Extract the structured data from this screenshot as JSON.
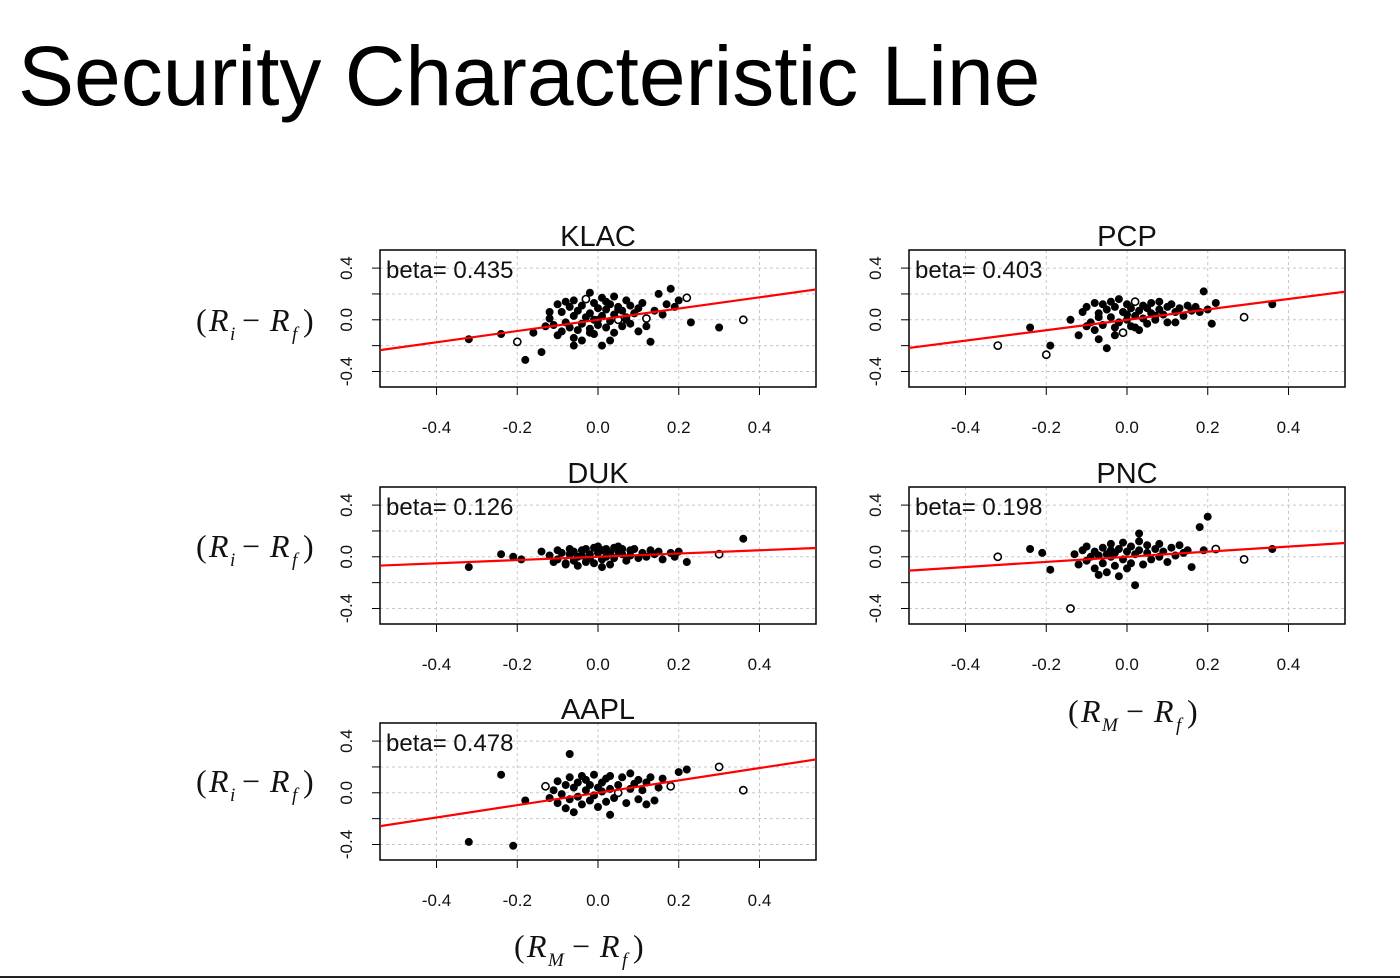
{
  "slide": {
    "title": "Security Characteristic Line"
  },
  "labels": {
    "y_paren_open": "(",
    "y_var": "R",
    "y_sub": "i",
    "y_minus": "−",
    "y_var2": "R",
    "y_sub2": "f",
    "y_paren_close": ")",
    "x_paren_open": "(",
    "x_var": "R",
    "x_sub": "M",
    "x_minus": "−",
    "x_var2": "R",
    "x_sub2": "f",
    "x_paren_close": ")"
  },
  "colors": {
    "regression_line": "#ff0000",
    "points": "#000000",
    "grid": "#c8c8c8",
    "frame": "#000000"
  },
  "chart_data": [
    {
      "type": "scatter",
      "title": "KLAC",
      "annotation": "beta= 0.435",
      "beta": 0.435,
      "intercept": 0.0,
      "xlim": [
        -0.54,
        0.54
      ],
      "ylim": [
        -0.52,
        0.54
      ],
      "xticks": [
        -0.4,
        -0.2,
        0.0,
        0.2,
        0.4
      ],
      "xtick_labels": [
        "-0.4",
        "-0.2",
        "0.0",
        "0.2",
        "0.4"
      ],
      "yticks": [
        -0.4,
        0.0,
        0.4
      ],
      "ytick_labels": [
        "-0.4",
        "0.0",
        "0.4"
      ],
      "grid": true,
      "x": [
        -0.32,
        -0.24,
        -0.2,
        -0.18,
        -0.16,
        -0.14,
        -0.13,
        -0.12,
        -0.11,
        -0.1,
        -0.1,
        -0.09,
        -0.09,
        -0.08,
        -0.08,
        -0.07,
        -0.07,
        -0.06,
        -0.06,
        -0.06,
        -0.05,
        -0.05,
        -0.04,
        -0.04,
        -0.04,
        -0.03,
        -0.03,
        -0.02,
        -0.02,
        -0.02,
        -0.01,
        -0.01,
        -0.01,
        0.0,
        0.0,
        0.01,
        0.01,
        0.01,
        0.02,
        0.02,
        0.02,
        0.03,
        0.03,
        0.04,
        0.04,
        0.04,
        0.05,
        0.05,
        0.06,
        0.06,
        0.07,
        0.07,
        0.08,
        0.08,
        0.09,
        0.1,
        0.1,
        0.11,
        0.12,
        0.13,
        0.14,
        0.15,
        0.16,
        0.17,
        0.18,
        0.19,
        0.2,
        0.22,
        0.23,
        0.3,
        0.36,
        -0.06,
        0.03,
        0.07,
        -0.12,
        0.12,
        -0.02,
        0.05,
        0.0,
        0.09
      ],
      "y": [
        -0.15,
        -0.11,
        -0.17,
        -0.31,
        -0.1,
        -0.25,
        -0.05,
        0.01,
        -0.04,
        -0.12,
        0.12,
        -0.09,
        0.06,
        -0.02,
        0.14,
        -0.06,
        0.1,
        -0.14,
        0.03,
        0.15,
        -0.08,
        0.07,
        -0.03,
        0.11,
        -0.16,
        0.02,
        0.16,
        -0.07,
        0.05,
        0.21,
        -0.11,
        0.0,
        0.13,
        -0.04,
        0.09,
        -0.2,
        0.03,
        0.17,
        -0.06,
        0.08,
        0.14,
        -0.01,
        0.12,
        -0.1,
        0.04,
        0.18,
        0.0,
        0.1,
        -0.05,
        0.07,
        0.02,
        0.15,
        -0.03,
        0.11,
        0.05,
        -0.09,
        0.09,
        0.13,
        0.01,
        -0.17,
        0.07,
        0.2,
        0.04,
        0.12,
        0.24,
        0.1,
        0.15,
        0.17,
        -0.02,
        -0.06,
        0.0,
        -0.2,
        -0.16,
        0.0,
        0.06,
        -0.05,
        -0.1,
        0.08,
        0.0,
        0.05
      ],
      "open_markers": [
        2,
        26,
        46,
        58,
        67,
        70
      ]
    },
    {
      "type": "scatter",
      "title": "PCP",
      "annotation": "beta= 0.403",
      "beta": 0.403,
      "intercept": 0.0,
      "xlim": [
        -0.54,
        0.54
      ],
      "ylim": [
        -0.52,
        0.54
      ],
      "xticks": [
        -0.4,
        -0.2,
        0.0,
        0.2,
        0.4
      ],
      "xtick_labels": [
        "-0.4",
        "-0.2",
        "0.0",
        "0.2",
        "0.4"
      ],
      "yticks": [
        -0.4,
        0.0,
        0.4
      ],
      "ytick_labels": [
        "-0.4",
        "0.0",
        "0.4"
      ],
      "grid": true,
      "x": [
        -0.32,
        -0.24,
        -0.2,
        -0.19,
        -0.14,
        -0.12,
        -0.11,
        -0.1,
        -0.1,
        -0.09,
        -0.08,
        -0.08,
        -0.07,
        -0.07,
        -0.06,
        -0.06,
        -0.05,
        -0.05,
        -0.04,
        -0.04,
        -0.03,
        -0.03,
        -0.02,
        -0.02,
        -0.01,
        -0.01,
        0.0,
        0.0,
        0.01,
        0.01,
        0.02,
        0.02,
        0.03,
        0.03,
        0.04,
        0.04,
        0.05,
        0.05,
        0.06,
        0.06,
        0.07,
        0.08,
        0.08,
        0.09,
        0.1,
        0.1,
        0.11,
        0.12,
        0.13,
        0.14,
        0.15,
        0.16,
        0.17,
        0.18,
        0.19,
        0.2,
        0.21,
        0.22,
        0.29,
        0.36,
        -0.03,
        0.02,
        0.07,
        -0.07,
        0.12,
        0.0
      ],
      "y": [
        -0.2,
        -0.06,
        -0.27,
        -0.2,
        0.0,
        -0.12,
        0.06,
        -0.05,
        0.1,
        -0.02,
        0.13,
        -0.08,
        0.05,
        -0.15,
        0.12,
        -0.04,
        0.08,
        -0.22,
        0.02,
        0.14,
        -0.06,
        0.1,
        -0.02,
        0.16,
        -0.1,
        0.06,
        0.0,
        0.12,
        -0.05,
        0.09,
        0.03,
        0.14,
        -0.08,
        0.07,
        0.01,
        0.11,
        -0.03,
        0.09,
        0.05,
        0.13,
        0.0,
        0.08,
        0.14,
        0.04,
        0.1,
        -0.02,
        0.12,
        0.06,
        0.09,
        0.03,
        0.11,
        0.07,
        0.1,
        0.06,
        0.22,
        0.08,
        -0.03,
        0.13,
        0.02,
        0.12,
        -0.12,
        -0.06,
        0.03,
        0.02,
        -0.02,
        0.04
      ],
      "open_markers": [
        0,
        2,
        24,
        31,
        58
      ]
    },
    {
      "type": "scatter",
      "title": "DUK",
      "annotation": "beta= 0.126",
      "beta": 0.126,
      "intercept": 0.0,
      "xlim": [
        -0.54,
        0.54
      ],
      "ylim": [
        -0.52,
        0.54
      ],
      "xticks": [
        -0.4,
        -0.2,
        0.0,
        0.2,
        0.4
      ],
      "xtick_labels": [
        "-0.4",
        "-0.2",
        "0.0",
        "0.2",
        "0.4"
      ],
      "yticks": [
        -0.4,
        0.0,
        0.4
      ],
      "ytick_labels": [
        "-0.4",
        "0.0",
        "0.4"
      ],
      "grid": true,
      "x": [
        -0.32,
        -0.24,
        -0.21,
        -0.19,
        -0.14,
        -0.12,
        -0.11,
        -0.1,
        -0.1,
        -0.09,
        -0.08,
        -0.07,
        -0.07,
        -0.06,
        -0.06,
        -0.05,
        -0.05,
        -0.04,
        -0.04,
        -0.03,
        -0.03,
        -0.02,
        -0.02,
        -0.01,
        -0.01,
        0.0,
        0.0,
        0.01,
        0.01,
        0.02,
        0.02,
        0.03,
        0.03,
        0.04,
        0.04,
        0.05,
        0.05,
        0.06,
        0.07,
        0.08,
        0.08,
        0.09,
        0.1,
        0.11,
        0.12,
        0.13,
        0.14,
        0.15,
        0.16,
        0.18,
        0.19,
        0.2,
        0.22,
        0.3,
        0.36,
        -0.08,
        0.01,
        0.06
      ],
      "y": [
        -0.08,
        0.02,
        0.0,
        -0.02,
        0.04,
        0.01,
        -0.04,
        0.05,
        -0.02,
        0.03,
        -0.06,
        0.02,
        0.06,
        -0.03,
        0.04,
        0.0,
        -0.07,
        0.05,
        0.01,
        -0.04,
        0.06,
        0.02,
        -0.01,
        0.07,
        -0.05,
        0.03,
        0.08,
        -0.02,
        0.05,
        0.0,
        0.06,
        -0.06,
        0.03,
        0.07,
        -0.01,
        0.04,
        0.08,
        0.02,
        -0.03,
        0.05,
        0.01,
        0.06,
        -0.01,
        0.03,
        0.0,
        0.05,
        0.02,
        0.04,
        -0.02,
        0.03,
        0.0,
        0.04,
        -0.04,
        0.02,
        0.14,
        -0.05,
        -0.08,
        0.06
      ],
      "open_markers": [
        53
      ]
    },
    {
      "type": "scatter",
      "title": "PNC",
      "annotation": "beta= 0.198",
      "beta": 0.198,
      "intercept": 0.0,
      "xlim": [
        -0.54,
        0.54
      ],
      "ylim": [
        -0.52,
        0.54
      ],
      "xticks": [
        -0.4,
        -0.2,
        0.0,
        0.2,
        0.4
      ],
      "xtick_labels": [
        "-0.4",
        "-0.2",
        "0.0",
        "0.2",
        "0.4"
      ],
      "yticks": [
        -0.4,
        0.0,
        0.4
      ],
      "ytick_labels": [
        "-0.4",
        "0.0",
        "0.4"
      ],
      "grid": true,
      "x": [
        -0.32,
        -0.24,
        -0.21,
        -0.19,
        -0.14,
        -0.13,
        -0.12,
        -0.11,
        -0.1,
        -0.1,
        -0.09,
        -0.08,
        -0.08,
        -0.07,
        -0.07,
        -0.06,
        -0.06,
        -0.05,
        -0.05,
        -0.04,
        -0.04,
        -0.03,
        -0.03,
        -0.02,
        -0.02,
        -0.01,
        -0.01,
        0.0,
        0.0,
        0.01,
        0.01,
        0.02,
        0.02,
        0.03,
        0.03,
        0.04,
        0.05,
        0.05,
        0.06,
        0.07,
        0.08,
        0.08,
        0.09,
        0.1,
        0.11,
        0.12,
        0.13,
        0.14,
        0.15,
        0.16,
        0.18,
        0.19,
        0.2,
        0.22,
        0.29,
        0.36,
        -0.04,
        0.03
      ],
      "y": [
        0.0,
        0.06,
        0.03,
        -0.1,
        -0.4,
        0.02,
        -0.06,
        0.05,
        -0.03,
        0.08,
        0.0,
        -0.09,
        0.04,
        0.01,
        -0.14,
        0.07,
        -0.05,
        0.02,
        -0.12,
        0.05,
        0.1,
        -0.07,
        0.03,
        -0.15,
        0.06,
        -0.02,
        0.11,
        -0.09,
        0.04,
        -0.05,
        0.08,
        0.02,
        -0.22,
        0.05,
        0.12,
        -0.06,
        0.03,
        0.09,
        -0.02,
        0.06,
        0.0,
        0.1,
        0.04,
        -0.04,
        0.07,
        0.01,
        0.09,
        0.03,
        0.05,
        -0.08,
        0.23,
        0.05,
        0.31,
        0.06,
        -0.02,
        0.06,
        0.0,
        0.18
      ],
      "open_markers": [
        0,
        4,
        53,
        54
      ]
    },
    {
      "type": "scatter",
      "title": "AAPL",
      "annotation": "beta= 0.478",
      "beta": 0.478,
      "intercept": 0.0,
      "xlim": [
        -0.54,
        0.54
      ],
      "ylim": [
        -0.52,
        0.54
      ],
      "xticks": [
        -0.4,
        -0.2,
        0.0,
        0.2,
        0.4
      ],
      "xtick_labels": [
        "-0.4",
        "-0.2",
        "0.0",
        "0.2",
        "0.4"
      ],
      "yticks": [
        -0.4,
        0.0,
        0.4
      ],
      "ytick_labels": [
        "-0.4",
        "0.0",
        "0.4"
      ],
      "grid": true,
      "x": [
        -0.32,
        -0.24,
        -0.21,
        -0.18,
        -0.13,
        -0.12,
        -0.11,
        -0.1,
        -0.1,
        -0.09,
        -0.08,
        -0.08,
        -0.07,
        -0.07,
        -0.06,
        -0.06,
        -0.05,
        -0.05,
        -0.04,
        -0.04,
        -0.03,
        -0.03,
        -0.02,
        -0.02,
        -0.01,
        -0.01,
        0.0,
        0.0,
        0.01,
        0.01,
        0.02,
        0.02,
        0.03,
        0.03,
        0.04,
        0.05,
        0.05,
        0.06,
        0.07,
        0.08,
        0.08,
        0.09,
        0.1,
        0.1,
        0.11,
        0.12,
        0.13,
        0.14,
        0.15,
        0.16,
        0.18,
        0.2,
        0.22,
        0.3,
        0.36,
        -0.07,
        0.03,
        0.12
      ],
      "y": [
        -0.38,
        0.14,
        -0.41,
        -0.06,
        0.05,
        -0.04,
        0.02,
        -0.08,
        0.09,
        -0.01,
        -0.12,
        0.06,
        -0.05,
        0.12,
        -0.15,
        0.04,
        0.08,
        -0.03,
        0.13,
        -0.09,
        0.02,
        0.1,
        -0.06,
        0.06,
        0.14,
        -0.02,
        0.04,
        -0.11,
        0.08,
        0.01,
        -0.07,
        0.11,
        0.03,
        0.13,
        -0.04,
        0.06,
        0.0,
        0.12,
        -0.08,
        0.03,
        0.15,
        0.07,
        -0.05,
        0.1,
        0.02,
        0.08,
        0.12,
        -0.06,
        0.04,
        0.11,
        0.05,
        0.16,
        0.18,
        0.2,
        0.02,
        0.3,
        -0.17,
        -0.09
      ],
      "open_markers": [
        4,
        36,
        50,
        53,
        54
      ]
    }
  ]
}
